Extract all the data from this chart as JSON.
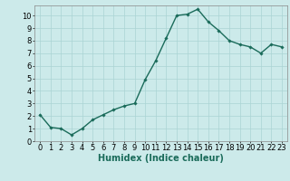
{
  "x": [
    0,
    1,
    2,
    3,
    4,
    5,
    6,
    7,
    8,
    9,
    10,
    11,
    12,
    13,
    14,
    15,
    16,
    17,
    18,
    19,
    20,
    21,
    22,
    23
  ],
  "y": [
    2.1,
    1.1,
    1.0,
    0.5,
    1.0,
    1.7,
    2.1,
    2.5,
    2.8,
    3.0,
    4.9,
    6.4,
    8.2,
    10.0,
    10.1,
    10.5,
    9.5,
    8.8,
    8.0,
    7.7,
    7.5,
    7.0,
    7.7,
    7.5
  ],
  "line_color": "#1a6b5a",
  "marker": "D",
  "marker_size": 1.8,
  "line_width": 1.0,
  "bg_color": "#cceaea",
  "grid_color": "#aad4d4",
  "xlabel": "Humidex (Indice chaleur)",
  "xlabel_fontsize": 7,
  "tick_fontsize": 6,
  "xlim": [
    -0.5,
    23.5
  ],
  "ylim": [
    0,
    10.8
  ],
  "yticks": [
    0,
    1,
    2,
    3,
    4,
    5,
    6,
    7,
    8,
    9,
    10
  ],
  "xticks": [
    0,
    1,
    2,
    3,
    4,
    5,
    6,
    7,
    8,
    9,
    10,
    11,
    12,
    13,
    14,
    15,
    16,
    17,
    18,
    19,
    20,
    21,
    22,
    23
  ]
}
